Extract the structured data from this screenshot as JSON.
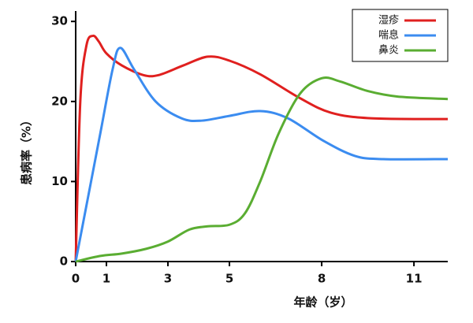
{
  "chart_data": {
    "type": "line",
    "ylabel": "患病率（%）",
    "xlabel": "年龄（岁）",
    "xlim": [
      0,
      12.1
    ],
    "ylim": [
      0,
      31.3
    ],
    "xticks": [
      0,
      1,
      3,
      5,
      8,
      11
    ],
    "yticks": [
      0,
      10,
      20,
      30
    ],
    "legend": "upper right",
    "series": [
      {
        "name": "湿疹",
        "color": "#e0201f",
        "x": [
          0,
          0.15,
          0.35,
          0.56,
          0.75,
          1.0,
          1.5,
          2.2,
          2.7,
          3.5,
          4.3,
          5.0,
          6.0,
          7.3,
          8.3,
          9.6,
          12.1
        ],
        "values": [
          0,
          20,
          27,
          28.2,
          27.5,
          26,
          24.5,
          23.3,
          23.3,
          24.5,
          25.6,
          25.1,
          23.4,
          20.4,
          18.6,
          17.9,
          17.8
        ]
      },
      {
        "name": "喘息",
        "color": "#3b8cf0",
        "x": [
          0,
          0.4,
          0.8,
          1.2,
          1.45,
          1.9,
          2.6,
          3.44,
          4.08,
          5.0,
          6.0,
          6.9,
          8.05,
          9.08,
          10.0,
          12.1
        ],
        "values": [
          0,
          8,
          16,
          24,
          26.7,
          24,
          20,
          17.9,
          17.6,
          18.2,
          18.8,
          17.9,
          15.1,
          13.2,
          12.8,
          12.8
        ]
      },
      {
        "name": "鼻炎",
        "color": "#5aad32",
        "x": [
          0,
          0.8,
          1.5,
          2.3,
          3.0,
          3.7,
          4.3,
          5.0,
          5.5,
          6.0,
          6.6,
          7.3,
          8.0,
          8.6,
          9.5,
          10.5,
          12.1
        ],
        "values": [
          0,
          0.7,
          1.0,
          1.6,
          2.5,
          4.0,
          4.4,
          4.6,
          6,
          10,
          16,
          21,
          22.9,
          22.5,
          21.3,
          20.6,
          20.3
        ]
      }
    ]
  }
}
